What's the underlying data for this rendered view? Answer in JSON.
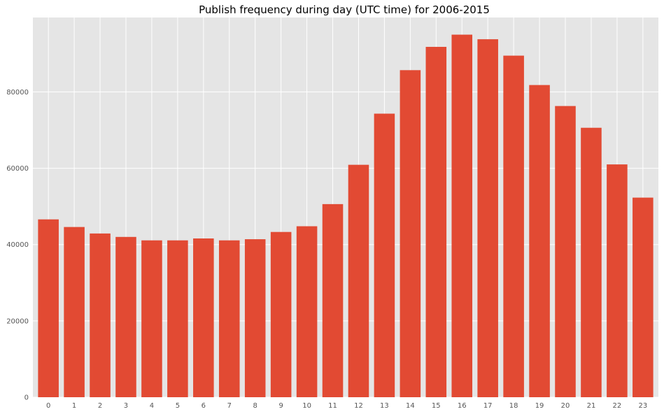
{
  "chart_data": {
    "type": "bar",
    "title": "Publish frequency during day (UTC time) for 2006-2015",
    "xlabel": "",
    "ylabel": "",
    "categories": [
      "0",
      "1",
      "2",
      "3",
      "4",
      "5",
      "6",
      "7",
      "8",
      "9",
      "10",
      "11",
      "12",
      "13",
      "14",
      "15",
      "16",
      "17",
      "18",
      "19",
      "20",
      "21",
      "22",
      "23"
    ],
    "values": [
      46600,
      44600,
      42900,
      42000,
      41100,
      41100,
      41600,
      41100,
      41400,
      43300,
      44800,
      50600,
      60900,
      74300,
      85700,
      91800,
      95000,
      93800,
      89500,
      81800,
      76300,
      70600,
      61000,
      52300
    ],
    "ylim": [
      0,
      99500
    ],
    "yticks": [
      0,
      20000,
      40000,
      60000,
      80000
    ],
    "grid": true,
    "colors": {
      "bar": "#E24A33",
      "plot_background": "#E5E5E5",
      "grid": "#FFFFFF"
    }
  }
}
